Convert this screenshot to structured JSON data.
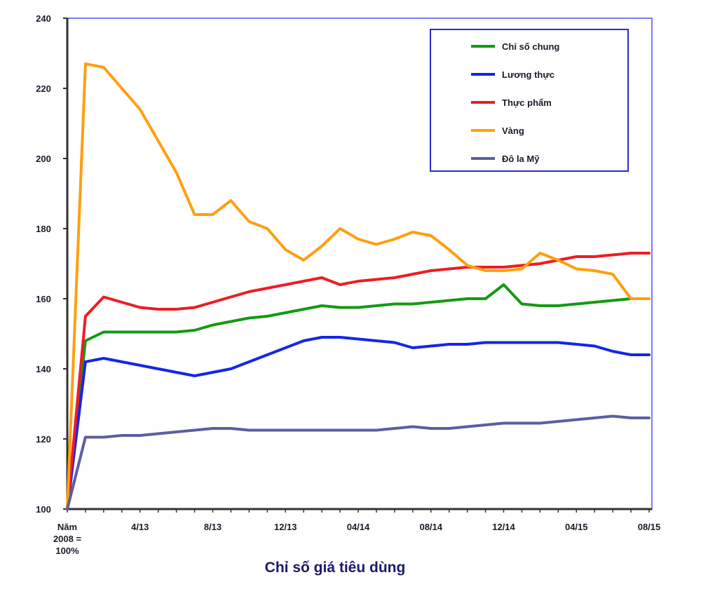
{
  "chart_data": {
    "type": "line",
    "title": "",
    "xlabel": "Chỉ số giá tiêu dùng",
    "ylabel": "",
    "ylim": [
      100,
      240
    ],
    "y_ticks": [
      100,
      120,
      140,
      160,
      180,
      200,
      220,
      240
    ],
    "y_tick_labels": [
      "100",
      "120",
      "140",
      "160",
      "180",
      "200",
      "220",
      "240"
    ],
    "x_tick_labels": [
      {
        "label": "Năm\n2008 =\n100%",
        "index": 0
      },
      {
        "label": "4/13",
        "index": 4
      },
      {
        "label": "8/13",
        "index": 8
      },
      {
        "label": "12/13",
        "index": 12
      },
      {
        "label": "04/14",
        "index": 16
      },
      {
        "label": "08/14",
        "index": 20
      },
      {
        "label": "12/14",
        "index": 24
      },
      {
        "label": "04/15",
        "index": 28
      },
      {
        "label": "08/15",
        "index": 32
      }
    ],
    "n_points": 33,
    "legend_position": "top-right",
    "series": [
      {
        "name": "Chỉ số chung",
        "color": "#139a13",
        "values": [
          100,
          148,
          150.5,
          150.5,
          150.5,
          150.5,
          150.5,
          151,
          152.5,
          153.5,
          154.5,
          155,
          156,
          157,
          158,
          157.5,
          157.5,
          158,
          158.5,
          158.5,
          159,
          159.5,
          160,
          160,
          164,
          158.5,
          158,
          158,
          158.5,
          159,
          159.5,
          160,
          160
        ]
      },
      {
        "name": "Lương thực",
        "color": "#1426e6",
        "values": [
          100,
          142,
          143,
          142,
          141,
          140,
          139,
          138,
          139,
          140,
          142,
          144,
          146,
          148,
          149,
          149,
          148.5,
          148,
          147.5,
          146,
          146.5,
          147,
          147,
          147.5,
          147.5,
          147.5,
          147.5,
          147.5,
          147,
          146.5,
          145,
          144,
          144
        ]
      },
      {
        "name": "Thực phẩm",
        "color": "#ee1c24",
        "values": [
          100,
          155,
          160.5,
          159,
          157.5,
          157,
          157,
          157.5,
          159,
          160.5,
          162,
          163,
          164,
          165,
          166,
          164,
          165,
          165.5,
          166,
          167,
          168,
          168.5,
          169,
          169,
          169,
          169.5,
          170,
          171,
          172,
          172,
          172.5,
          173,
          173
        ]
      },
      {
        "name": "Vàng",
        "color": "#ff9f0e",
        "values": [
          100,
          227,
          226,
          220,
          214,
          205,
          196,
          184,
          184,
          188,
          182,
          180,
          174,
          171,
          175,
          180,
          177,
          175.5,
          177,
          179,
          178,
          174,
          169.5,
          168,
          168,
          168.5,
          173,
          171,
          168.5,
          168,
          167,
          160,
          160
        ]
      },
      {
        "name": "Đô la Mỹ",
        "color": "#5b5fa0",
        "values": [
          100,
          120.5,
          120.5,
          121,
          121,
          121.5,
          122,
          122.5,
          123,
          123,
          122.5,
          122.5,
          122.5,
          122.5,
          122.5,
          122.5,
          122.5,
          122.5,
          123,
          123.5,
          123,
          123,
          123.5,
          124,
          124.5,
          124.5,
          124.5,
          125,
          125.5,
          126,
          126.5,
          126,
          126
        ]
      }
    ]
  }
}
